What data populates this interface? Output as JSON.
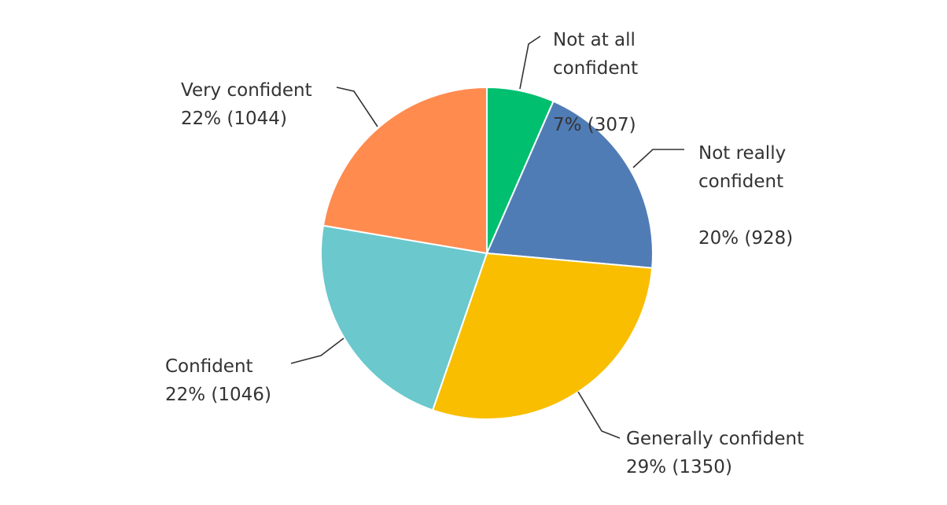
{
  "chart_data": {
    "type": "pie",
    "start_angle_deg": 0,
    "direction": "clockwise",
    "slices": [
      {
        "label": "Not at all confident",
        "label_lines": [
          "Not at all",
          "confident"
        ],
        "percent_text": "7%",
        "count_text": "(307)",
        "value": 307,
        "color": "#00bf6f"
      },
      {
        "label": "Not really confident",
        "label_lines": [
          "Not really",
          "confident"
        ],
        "percent_text": "20%",
        "count_text": "(928)",
        "value": 928,
        "color": "#507cb6"
      },
      {
        "label": "Generally confident",
        "label_lines": [
          "Generally confident"
        ],
        "percent_text": "29%",
        "count_text": "(1350)",
        "value": 1350,
        "color": "#f9be00"
      },
      {
        "label": "Confident",
        "label_lines": [
          "Confident"
        ],
        "percent_text": "22%",
        "count_text": "(1046)",
        "value": 1046,
        "color": "#6bc8cd"
      },
      {
        "label": "Very confident",
        "label_lines": [
          "Very confident"
        ],
        "percent_text": "22%",
        "count_text": "(1044)",
        "value": 1044,
        "color": "#ff8b4f"
      }
    ]
  }
}
